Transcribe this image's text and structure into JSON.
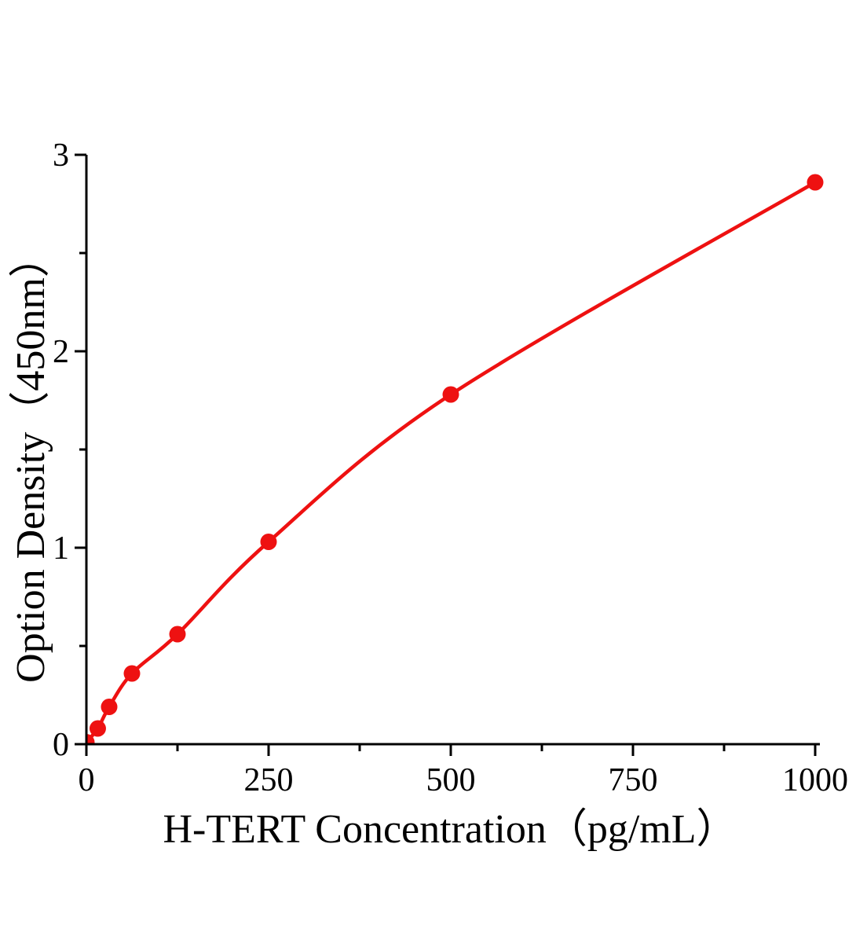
{
  "figure": {
    "background": "#ffffff"
  },
  "chart_data": {
    "type": "line",
    "title": "",
    "xlabel": "H-TERT Concentration（pg/mL）",
    "ylabel": "Option Density（450nm）",
    "x": [
      0,
      15.6,
      31.25,
      62.5,
      125,
      250,
      500,
      1000
    ],
    "y": [
      0.01,
      0.08,
      0.19,
      0.36,
      0.56,
      1.03,
      1.78,
      2.86
    ],
    "xlim": [
      0,
      1000
    ],
    "ylim": [
      0,
      3
    ],
    "x_major_ticks": [
      0,
      250,
      500,
      750,
      1000
    ],
    "x_tick_labels": [
      "0",
      "250",
      "500",
      "750",
      "1000"
    ],
    "x_minor_ticks": [
      125,
      375,
      625,
      875
    ],
    "y_major_ticks": [
      0,
      1,
      2,
      3
    ],
    "y_tick_labels": [
      "0",
      "1",
      "2",
      "3"
    ],
    "y_minor_ticks": [
      0.5,
      1.5,
      2.5
    ],
    "grid": false,
    "legend": "none",
    "marker": "circle",
    "line_color": "#ee1111",
    "marker_color": "#ee1111",
    "axis_color": "#000000",
    "text_color": "#000000"
  }
}
